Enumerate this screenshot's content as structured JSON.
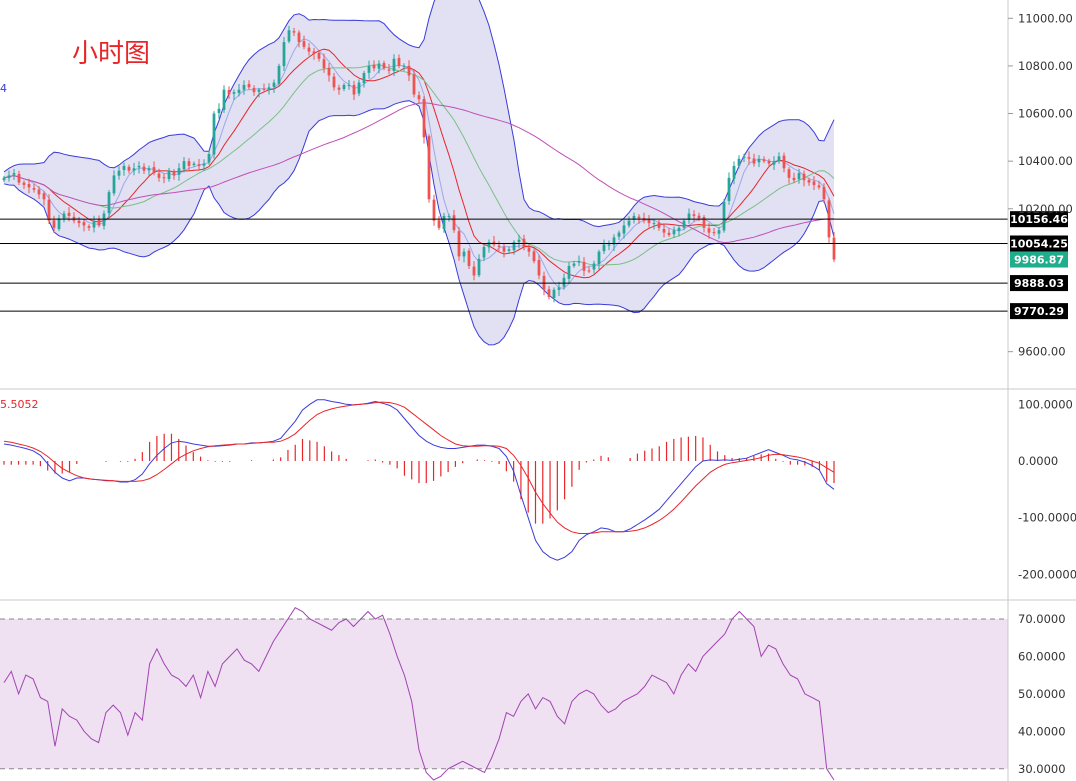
{
  "chart_title": "小时图",
  "colors": {
    "up": "#26a69a",
    "down": "#ef5350",
    "bb_fill": "#c9c9ea",
    "bb_line": "#3b3bdc",
    "ma_red": "#e8262a",
    "ma_green": "#7cbf86",
    "ma_blue": "#9ea8e8",
    "ma_purple": "#c24fb6",
    "macd_dif": "#3b3bdc",
    "macd_dea": "#e8262a",
    "rsi_line": "#a045b0",
    "rsi_band": "#efe1f2",
    "current_price": "#1fad8c"
  },
  "price_panel": {
    "ticks": [
      "11000.00",
      "10800.00",
      "10600.00",
      "10400.00",
      "10200.00",
      "9600.00"
    ],
    "level_labels": [
      "10156.46",
      "10054.25",
      "9888.03",
      "9770.29"
    ],
    "current_price_label": "9986.87",
    "left_marker": "4"
  },
  "macd_panel": {
    "left_label": "5.5052",
    "ticks": [
      "100.0000",
      "0.0000",
      "-100.0000",
      "-200.0000"
    ]
  },
  "rsi_panel": {
    "ticks": [
      "70.0000",
      "60.0000",
      "50.0000",
      "40.0000",
      "30.0000"
    ]
  },
  "chart_data": [
    {
      "type": "candlestick",
      "title": "小时图",
      "indicators": [
        "Bollinger Bands",
        "Moving Averages"
      ],
      "ylim": [
        9460,
        11060
      ],
      "horizontal_levels": [
        10156.46,
        10054.25,
        9888.03,
        9770.29
      ],
      "last_price": 9986.87,
      "close_series": [
        10330,
        10340,
        10350,
        10310,
        10300,
        10290,
        10280,
        10260,
        10240,
        10150,
        10120,
        10160,
        10180,
        10170,
        10150,
        10140,
        10130,
        10120,
        10150,
        10130,
        10180,
        10270,
        10340,
        10360,
        10380,
        10360,
        10370,
        10380,
        10360,
        10370,
        10350,
        10330,
        10330,
        10360,
        10340,
        10370,
        10400,
        10380,
        10390,
        10380,
        10390,
        10430,
        10600,
        10620,
        10700,
        10680,
        10690,
        10700,
        10720,
        10710,
        10690,
        10700,
        10700,
        10710,
        10730,
        10800,
        10900,
        10950,
        10940,
        10900,
        10880,
        10860,
        10850,
        10830,
        10790,
        10760,
        10710,
        10700,
        10720,
        10720,
        10680,
        10730,
        10770,
        10800,
        10790,
        10810,
        10790,
        10780,
        10830,
        10800,
        10800,
        10760,
        10680,
        10660,
        10500,
        10240,
        10150,
        10120,
        10170,
        10170,
        10110,
        10000,
        10020,
        9960,
        9920,
        9990,
        10040,
        10060,
        10050,
        10040,
        10020,
        10030,
        10060,
        10070,
        10040,
        10020,
        9980,
        9920,
        9860,
        9830,
        9860,
        9870,
        9910,
        9960,
        9970,
        9980,
        9940,
        9940,
        9970,
        10020,
        10050,
        10050,
        10080,
        10100,
        10130,
        10150,
        10170,
        10160,
        10150,
        10140,
        10140,
        10120,
        10100,
        10090,
        10110,
        10120,
        10150,
        10180,
        10170,
        10160,
        10120,
        10100,
        10100,
        10110,
        10230,
        10330,
        10380,
        10410,
        10420,
        10410,
        10390,
        10410,
        10400,
        10390,
        10400,
        10420,
        10370,
        10330,
        10320,
        10350,
        10320,
        10310,
        10300,
        10290,
        10240,
        10080,
        9986.87
      ]
    },
    {
      "type": "bar",
      "title": "MACD",
      "ylim": [
        -240,
        120
      ],
      "dif": [
        30,
        28,
        25,
        22,
        18,
        10,
        -5,
        -20,
        -30,
        -35,
        -30,
        -30,
        -32,
        -33,
        -35,
        -35,
        -37,
        -37,
        -33,
        -23,
        -5,
        10,
        22,
        32,
        35,
        33,
        30,
        28,
        26,
        26,
        27,
        28,
        30,
        30,
        32,
        32,
        33,
        35,
        40,
        55,
        70,
        90,
        100,
        108,
        108,
        105,
        103,
        100,
        99,
        100,
        102,
        105,
        102,
        98,
        90,
        75,
        60,
        45,
        35,
        28,
        24,
        22,
        22,
        24,
        26,
        28,
        28,
        26,
        22,
        8,
        -18,
        -60,
        -100,
        -140,
        -160,
        -170,
        -175,
        -170,
        -160,
        -140,
        -130,
        -125,
        -118,
        -120,
        -125,
        -125,
        -120,
        -112,
        -104,
        -95,
        -85,
        -70,
        -55,
        -40,
        -25,
        -10,
        0,
        2,
        1,
        2,
        1,
        3,
        5,
        10,
        15,
        20,
        15,
        10,
        4,
        2,
        -2,
        -8,
        -16,
        -40,
        -50
      ],
      "dea": [
        35,
        33,
        30,
        27,
        23,
        17,
        8,
        -3,
        -13,
        -20,
        -26,
        -30,
        -32,
        -33,
        -34,
        -35,
        -36,
        -36,
        -36,
        -35,
        -31,
        -24,
        -15,
        -5,
        5,
        12,
        18,
        22,
        25,
        27,
        28,
        29,
        30,
        30,
        31,
        32,
        33,
        33,
        35,
        40,
        48,
        60,
        72,
        82,
        88,
        92,
        95,
        97,
        99,
        100,
        101,
        103,
        104,
        103,
        100,
        95,
        85,
        75,
        65,
        55,
        45,
        37,
        30,
        27,
        26,
        26,
        27,
        27,
        26,
        22,
        10,
        -8,
        -30,
        -55,
        -75,
        -92,
        -108,
        -118,
        -125,
        -128,
        -128,
        -127,
        -125,
        -125,
        -125,
        -125,
        -124,
        -122,
        -118,
        -112,
        -105,
        -96,
        -85,
        -72,
        -58,
        -44,
        -32,
        -20,
        -12,
        -6,
        -3,
        -1,
        1,
        3,
        6,
        10,
        12,
        11,
        9,
        7,
        4,
        0,
        -4,
        -12,
        -20
      ]
    },
    {
      "type": "line",
      "title": "RSI",
      "ylim": [
        27,
        74
      ],
      "levels": [
        70,
        30
      ],
      "values": [
        53,
        56,
        50,
        55,
        54,
        49,
        48,
        36,
        46,
        44,
        43,
        40,
        38,
        37,
        45,
        47,
        45,
        39,
        45,
        43,
        58,
        62,
        58,
        55,
        54,
        52,
        55,
        49,
        56,
        52,
        58,
        60,
        62,
        59,
        58,
        56,
        60,
        64,
        67,
        70,
        73,
        72,
        70,
        69,
        68,
        67,
        69,
        70,
        68,
        70,
        72,
        70,
        71,
        66,
        60,
        55,
        48,
        35,
        29,
        27,
        28,
        30,
        31,
        32,
        31,
        30,
        29,
        33,
        38,
        45,
        44,
        48,
        50,
        46,
        49,
        48,
        44,
        42,
        48,
        50,
        51,
        50,
        47,
        45,
        46,
        48,
        49,
        50,
        52,
        55,
        54,
        53,
        50,
        55,
        58,
        56,
        60,
        62,
        64,
        66,
        70,
        72,
        70,
        68,
        60,
        63,
        62,
        58,
        55,
        54,
        50,
        49,
        48,
        30,
        27
      ]
    }
  ]
}
